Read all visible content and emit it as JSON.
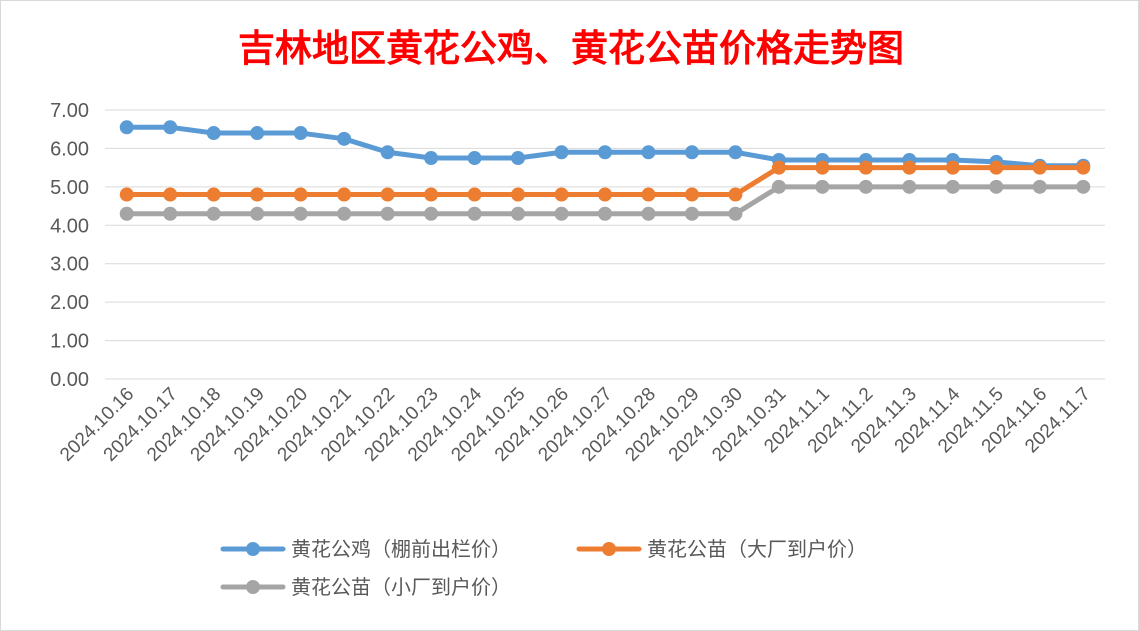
{
  "chart_data": {
    "type": "line",
    "title": "吉林地区黄花公鸡、黄花公苗价格走势图",
    "title_color": "#ff0000",
    "categories": [
      "2024.10.16",
      "2024.10.17",
      "2024.10.18",
      "2024.10.19",
      "2024.10.20",
      "2024.10.21",
      "2024.10.22",
      "2024.10.23",
      "2024.10.24",
      "2024.10.25",
      "2024.10.26",
      "2024.10.27",
      "2024.10.28",
      "2024.10.29",
      "2024.10.30",
      "2024.10.31",
      "2024.11.1",
      "2024.11.2",
      "2024.11.3",
      "2024.11.4",
      "2024.11.5",
      "2024.11.6",
      "2024.11.7"
    ],
    "yticks": [
      "0.00",
      "1.00",
      "2.00",
      "3.00",
      "4.00",
      "5.00",
      "6.00",
      "7.00"
    ],
    "ylim": [
      0,
      7
    ],
    "grid": true,
    "legend_position": "bottom",
    "xlabel": "",
    "ylabel": "",
    "series": [
      {
        "name": "黄花公鸡（棚前出栏价）",
        "color": "#5b9bd5",
        "values": [
          6.55,
          6.55,
          6.4,
          6.4,
          6.4,
          6.25,
          5.9,
          5.75,
          5.75,
          5.75,
          5.9,
          5.9,
          5.9,
          5.9,
          5.9,
          5.7,
          5.7,
          5.7,
          5.7,
          5.7,
          5.65,
          5.55,
          5.55
        ]
      },
      {
        "name": "黄花公苗（大厂到户价）",
        "color": "#ed7d31",
        "values": [
          4.8,
          4.8,
          4.8,
          4.8,
          4.8,
          4.8,
          4.8,
          4.8,
          4.8,
          4.8,
          4.8,
          4.8,
          4.8,
          4.8,
          4.8,
          5.5,
          5.5,
          5.5,
          5.5,
          5.5,
          5.5,
          5.5,
          5.5
        ]
      },
      {
        "name": "黄花公苗（小厂到户价）",
        "color": "#a5a5a5",
        "values": [
          4.3,
          4.3,
          4.3,
          4.3,
          4.3,
          4.3,
          4.3,
          4.3,
          4.3,
          4.3,
          4.3,
          4.3,
          4.3,
          4.3,
          4.3,
          5.0,
          5.0,
          5.0,
          5.0,
          5.0,
          5.0,
          5.0,
          5.0
        ]
      }
    ]
  }
}
